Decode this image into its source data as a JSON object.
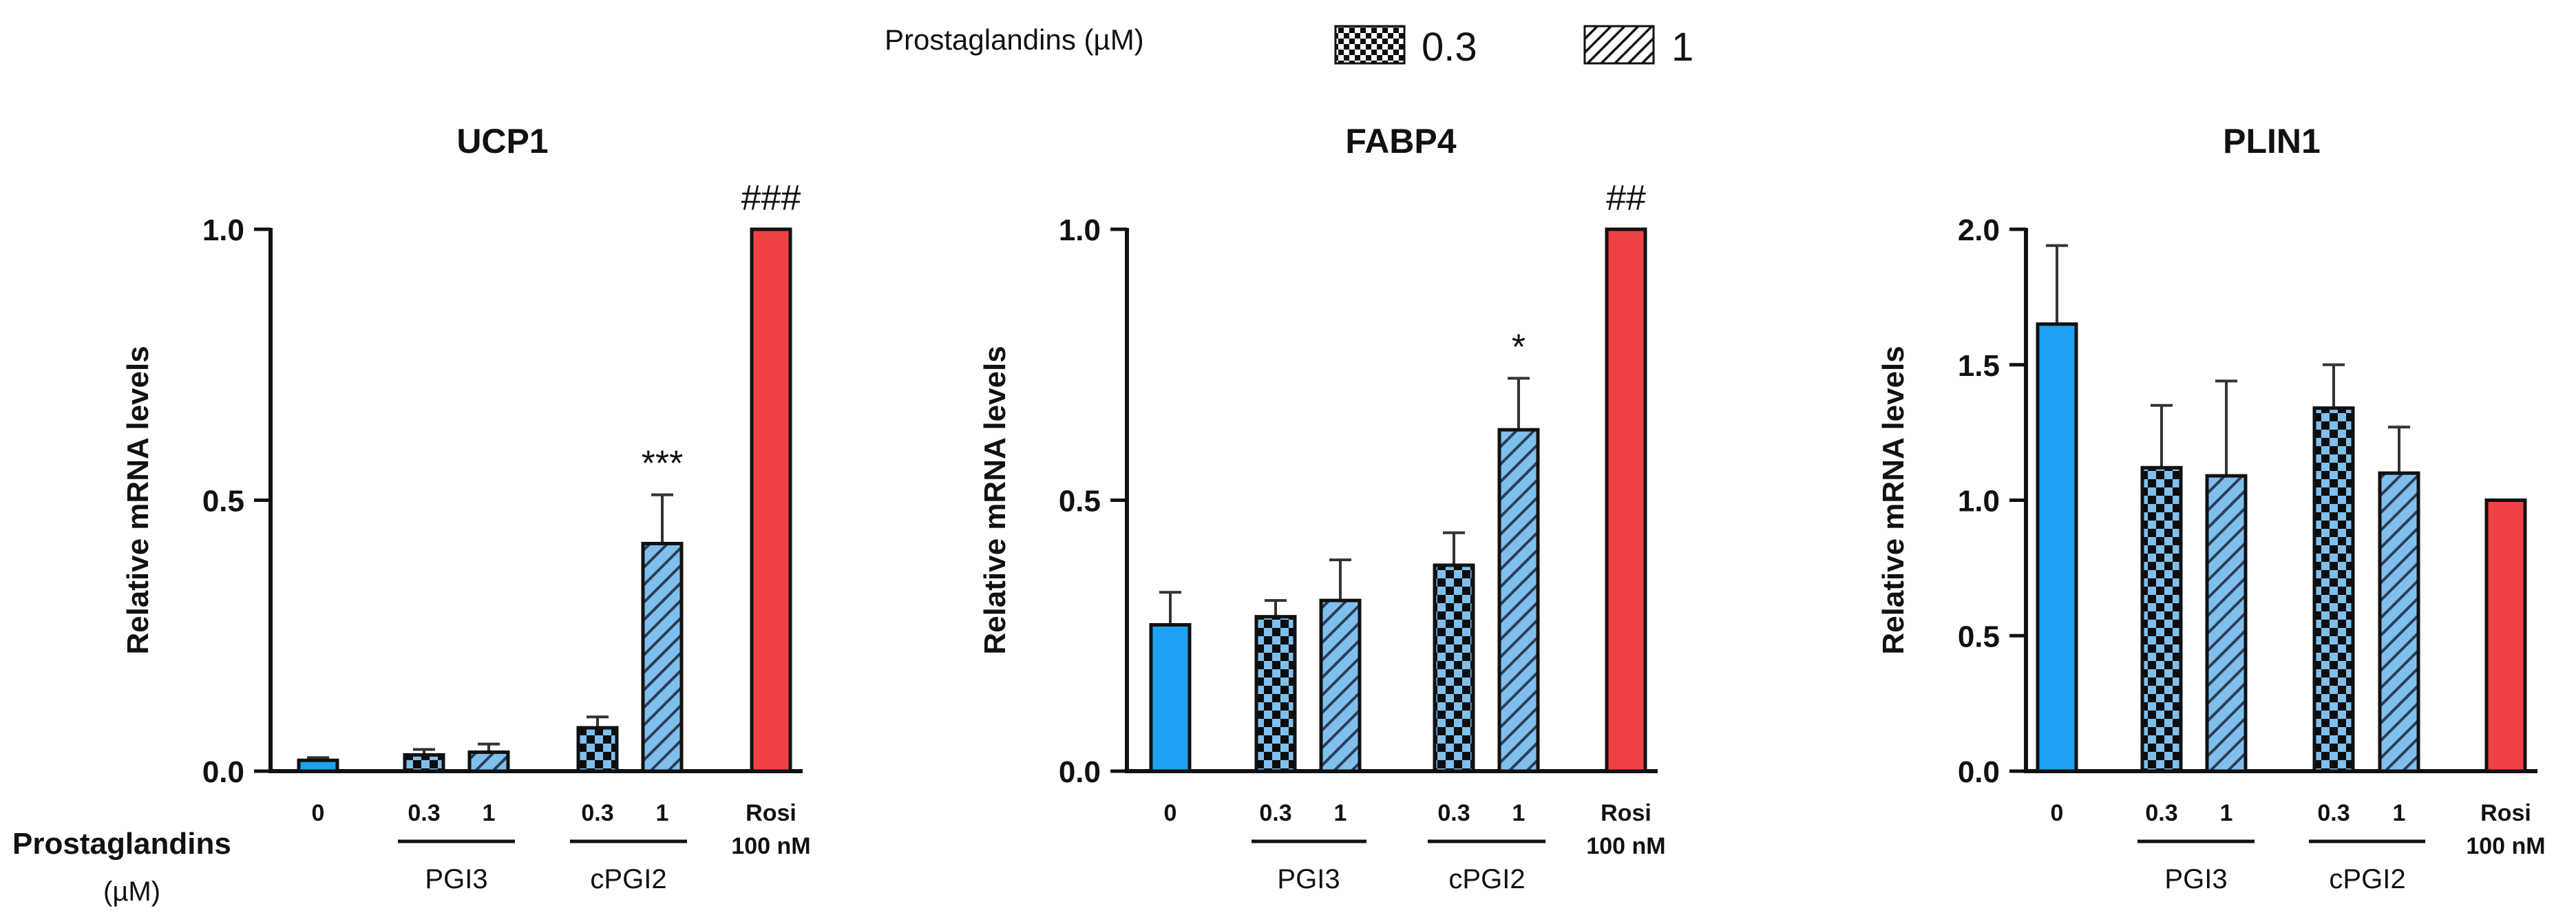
{
  "figure": {
    "legend": {
      "title": "Prostaglandins (µM)",
      "items": [
        {
          "label": "0.3",
          "pattern": "checker"
        },
        {
          "label": "1",
          "pattern": "hatch"
        }
      ]
    },
    "x_axis_label_line1": "Prostaglandins",
    "x_axis_label_line2": "(µM)",
    "conditions": [
      {
        "id": "control",
        "dose": "0",
        "group": ""
      },
      {
        "id": "pgi3_03",
        "dose": "0.3",
        "group": "PGI3"
      },
      {
        "id": "pgi3_1",
        "dose": "1",
        "group": "PGI3"
      },
      {
        "id": "cpgi2_03",
        "dose": "0.3",
        "group": "cPGI2"
      },
      {
        "id": "cpgi2_1",
        "dose": "1",
        "group": "cPGI2"
      },
      {
        "id": "rosi",
        "dose": "Rosi\n100 nM",
        "group": ""
      }
    ],
    "groups": [
      "PGI3",
      "cPGI2"
    ],
    "colors": {
      "control": "#1ea1f2",
      "prostaglandin": "#7fbfee",
      "rosi": "#f04245",
      "axis": "#111111"
    }
  },
  "chart_data": [
    {
      "type": "bar",
      "title": "UCP1",
      "ylabel": "Relative mRNA levels",
      "xlabel": "Prostaglandins (µM)",
      "ylim": [
        0,
        1.0
      ],
      "yticks": [
        "0.0",
        "0.5",
        "1.0"
      ],
      "categories": [
        "0",
        "0.3 PGI3",
        "1 PGI3",
        "0.3 cPGI2",
        "1 cPGI2",
        "Rosi 100 nM"
      ],
      "values": [
        0.02,
        0.03,
        0.035,
        0.08,
        0.42,
        1.0
      ],
      "errors": [
        0.005,
        0.01,
        0.015,
        0.02,
        0.09,
        0
      ],
      "annotations": [
        "",
        "",
        "",
        "",
        "***",
        "###"
      ]
    },
    {
      "type": "bar",
      "title": "FABP4",
      "ylabel": "Relative mRNA levels",
      "xlabel": "Prostaglandins (µM)",
      "ylim": [
        0,
        1.0
      ],
      "yticks": [
        "0.0",
        "0.5",
        "1.0"
      ],
      "categories": [
        "0",
        "0.3 PGI3",
        "1 PGI3",
        "0.3 cPGI2",
        "1 cPGI2",
        "Rosi 100 nM"
      ],
      "values": [
        0.27,
        0.285,
        0.315,
        0.38,
        0.63,
        1.0
      ],
      "errors": [
        0.06,
        0.03,
        0.075,
        0.06,
        0.095,
        0
      ],
      "annotations": [
        "",
        "",
        "",
        "",
        "*",
        "##"
      ]
    },
    {
      "type": "bar",
      "title": "PLIN1",
      "ylabel": "Relative mRNA levels",
      "xlabel": "Prostaglandins (µM)",
      "ylim": [
        0,
        2.0
      ],
      "yticks": [
        "0.0",
        "0.5",
        "1.0",
        "1.5",
        "2.0"
      ],
      "categories": [
        "0",
        "0.3 PGI3",
        "1 PGI3",
        "0.3 cPGI2",
        "1 cPGI2",
        "Rosi 100 nM"
      ],
      "values": [
        1.65,
        1.12,
        1.09,
        1.34,
        1.1,
        1.0
      ],
      "errors": [
        0.29,
        0.23,
        0.35,
        0.16,
        0.17,
        0
      ],
      "annotations": [
        "",
        "",
        "",
        "",
        "",
        ""
      ]
    }
  ]
}
